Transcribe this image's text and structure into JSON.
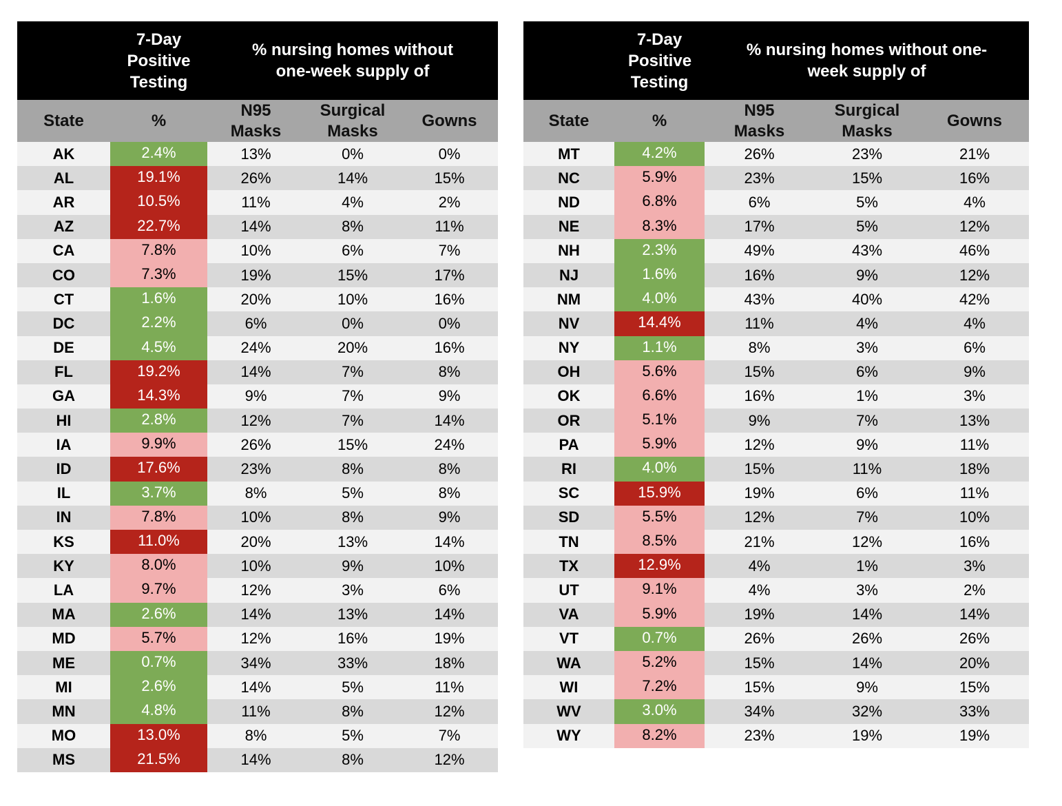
{
  "header": {
    "positive_title": "7-Day Positive Testing",
    "supply_title": "% nursing homes without one-week supply of",
    "col_state": "State",
    "col_pct": "%",
    "col_n95": "N95 Masks",
    "col_surgical": "Surgical Masks",
    "col_gowns": "Gowns"
  },
  "colors": {
    "low": "#7dab56",
    "mid": "#f2afaf",
    "high": "#b5241b"
  },
  "tables": [
    {
      "rows": [
        {
          "state": "AK",
          "pct": "2.4%",
          "level": "low",
          "n95": "13%",
          "surgical": "0%",
          "gowns": "0%"
        },
        {
          "state": "AL",
          "pct": "19.1%",
          "level": "high",
          "n95": "26%",
          "surgical": "14%",
          "gowns": "15%"
        },
        {
          "state": "AR",
          "pct": "10.5%",
          "level": "high",
          "n95": "11%",
          "surgical": "4%",
          "gowns": "2%"
        },
        {
          "state": "AZ",
          "pct": "22.7%",
          "level": "high",
          "n95": "14%",
          "surgical": "8%",
          "gowns": "11%"
        },
        {
          "state": "CA",
          "pct": "7.8%",
          "level": "mid",
          "n95": "10%",
          "surgical": "6%",
          "gowns": "7%"
        },
        {
          "state": "CO",
          "pct": "7.3%",
          "level": "mid",
          "n95": "19%",
          "surgical": "15%",
          "gowns": "17%"
        },
        {
          "state": "CT",
          "pct": "1.6%",
          "level": "low",
          "n95": "20%",
          "surgical": "10%",
          "gowns": "16%"
        },
        {
          "state": "DC",
          "pct": "2.2%",
          "level": "low",
          "n95": "6%",
          "surgical": "0%",
          "gowns": "0%"
        },
        {
          "state": "DE",
          "pct": "4.5%",
          "level": "low",
          "n95": "24%",
          "surgical": "20%",
          "gowns": "16%"
        },
        {
          "state": "FL",
          "pct": "19.2%",
          "level": "high",
          "n95": "14%",
          "surgical": "7%",
          "gowns": "8%"
        },
        {
          "state": "GA",
          "pct": "14.3%",
          "level": "high",
          "n95": "9%",
          "surgical": "7%",
          "gowns": "9%"
        },
        {
          "state": "HI",
          "pct": "2.8%",
          "level": "low",
          "n95": "12%",
          "surgical": "7%",
          "gowns": "14%"
        },
        {
          "state": "IA",
          "pct": "9.9%",
          "level": "mid",
          "n95": "26%",
          "surgical": "15%",
          "gowns": "24%"
        },
        {
          "state": "ID",
          "pct": "17.6%",
          "level": "high",
          "n95": "23%",
          "surgical": "8%",
          "gowns": "8%"
        },
        {
          "state": "IL",
          "pct": "3.7%",
          "level": "low",
          "n95": "8%",
          "surgical": "5%",
          "gowns": "8%"
        },
        {
          "state": "IN",
          "pct": "7.8%",
          "level": "mid",
          "n95": "10%",
          "surgical": "8%",
          "gowns": "9%"
        },
        {
          "state": "KS",
          "pct": "11.0%",
          "level": "high",
          "n95": "20%",
          "surgical": "13%",
          "gowns": "14%"
        },
        {
          "state": "KY",
          "pct": "8.0%",
          "level": "mid",
          "n95": "10%",
          "surgical": "9%",
          "gowns": "10%"
        },
        {
          "state": "LA",
          "pct": "9.7%",
          "level": "mid",
          "n95": "12%",
          "surgical": "3%",
          "gowns": "6%"
        },
        {
          "state": "MA",
          "pct": "2.6%",
          "level": "low",
          "n95": "14%",
          "surgical": "13%",
          "gowns": "14%"
        },
        {
          "state": "MD",
          "pct": "5.7%",
          "level": "mid",
          "n95": "12%",
          "surgical": "16%",
          "gowns": "19%"
        },
        {
          "state": "ME",
          "pct": "0.7%",
          "level": "low",
          "n95": "34%",
          "surgical": "33%",
          "gowns": "18%"
        },
        {
          "state": "MI",
          "pct": "2.6%",
          "level": "low",
          "n95": "14%",
          "surgical": "5%",
          "gowns": "11%"
        },
        {
          "state": "MN",
          "pct": "4.8%",
          "level": "low",
          "n95": "11%",
          "surgical": "8%",
          "gowns": "12%"
        },
        {
          "state": "MO",
          "pct": "13.0%",
          "level": "high",
          "n95": "8%",
          "surgical": "5%",
          "gowns": "7%"
        },
        {
          "state": "MS",
          "pct": "21.5%",
          "level": "high",
          "n95": "14%",
          "surgical": "8%",
          "gowns": "12%"
        }
      ]
    },
    {
      "rows": [
        {
          "state": "MT",
          "pct": "4.2%",
          "level": "low",
          "n95": "26%",
          "surgical": "23%",
          "gowns": "21%"
        },
        {
          "state": "NC",
          "pct": "5.9%",
          "level": "mid",
          "n95": "23%",
          "surgical": "15%",
          "gowns": "16%"
        },
        {
          "state": "ND",
          "pct": "6.8%",
          "level": "mid",
          "n95": "6%",
          "surgical": "5%",
          "gowns": "4%"
        },
        {
          "state": "NE",
          "pct": "8.3%",
          "level": "mid",
          "n95": "17%",
          "surgical": "5%",
          "gowns": "12%"
        },
        {
          "state": "NH",
          "pct": "2.3%",
          "level": "low",
          "n95": "49%",
          "surgical": "43%",
          "gowns": "46%"
        },
        {
          "state": "NJ",
          "pct": "1.6%",
          "level": "low",
          "n95": "16%",
          "surgical": "9%",
          "gowns": "12%"
        },
        {
          "state": "NM",
          "pct": "4.0%",
          "level": "low",
          "n95": "43%",
          "surgical": "40%",
          "gowns": "42%"
        },
        {
          "state": "NV",
          "pct": "14.4%",
          "level": "high",
          "n95": "11%",
          "surgical": "4%",
          "gowns": "4%"
        },
        {
          "state": "NY",
          "pct": "1.1%",
          "level": "low",
          "n95": "8%",
          "surgical": "3%",
          "gowns": "6%"
        },
        {
          "state": "OH",
          "pct": "5.6%",
          "level": "mid",
          "n95": "15%",
          "surgical": "6%",
          "gowns": "9%"
        },
        {
          "state": "OK",
          "pct": "6.6%",
          "level": "mid",
          "n95": "16%",
          "surgical": "1%",
          "gowns": "3%"
        },
        {
          "state": "OR",
          "pct": "5.1%",
          "level": "mid",
          "n95": "9%",
          "surgical": "7%",
          "gowns": "13%"
        },
        {
          "state": "PA",
          "pct": "5.9%",
          "level": "mid",
          "n95": "12%",
          "surgical": "9%",
          "gowns": "11%"
        },
        {
          "state": "RI",
          "pct": "4.0%",
          "level": "low",
          "n95": "15%",
          "surgical": "11%",
          "gowns": "18%"
        },
        {
          "state": "SC",
          "pct": "15.9%",
          "level": "high",
          "n95": "19%",
          "surgical": "6%",
          "gowns": "11%"
        },
        {
          "state": "SD",
          "pct": "5.5%",
          "level": "mid",
          "n95": "12%",
          "surgical": "7%",
          "gowns": "10%"
        },
        {
          "state": "TN",
          "pct": "8.5%",
          "level": "mid",
          "n95": "21%",
          "surgical": "12%",
          "gowns": "16%"
        },
        {
          "state": "TX",
          "pct": "12.9%",
          "level": "high",
          "n95": "4%",
          "surgical": "1%",
          "gowns": "3%"
        },
        {
          "state": "UT",
          "pct": "9.1%",
          "level": "mid",
          "n95": "4%",
          "surgical": "3%",
          "gowns": "2%"
        },
        {
          "state": "VA",
          "pct": "5.9%",
          "level": "mid",
          "n95": "19%",
          "surgical": "14%",
          "gowns": "14%"
        },
        {
          "state": "VT",
          "pct": "0.7%",
          "level": "low",
          "n95": "26%",
          "surgical": "26%",
          "gowns": "26%"
        },
        {
          "state": "WA",
          "pct": "5.2%",
          "level": "mid",
          "n95": "15%",
          "surgical": "14%",
          "gowns": "20%"
        },
        {
          "state": "WI",
          "pct": "7.2%",
          "level": "mid",
          "n95": "15%",
          "surgical": "9%",
          "gowns": "15%"
        },
        {
          "state": "WV",
          "pct": "3.0%",
          "level": "low",
          "n95": "34%",
          "surgical": "32%",
          "gowns": "33%"
        },
        {
          "state": "WY",
          "pct": "8.2%",
          "level": "mid",
          "n95": "23%",
          "surgical": "19%",
          "gowns": "19%"
        }
      ]
    }
  ]
}
